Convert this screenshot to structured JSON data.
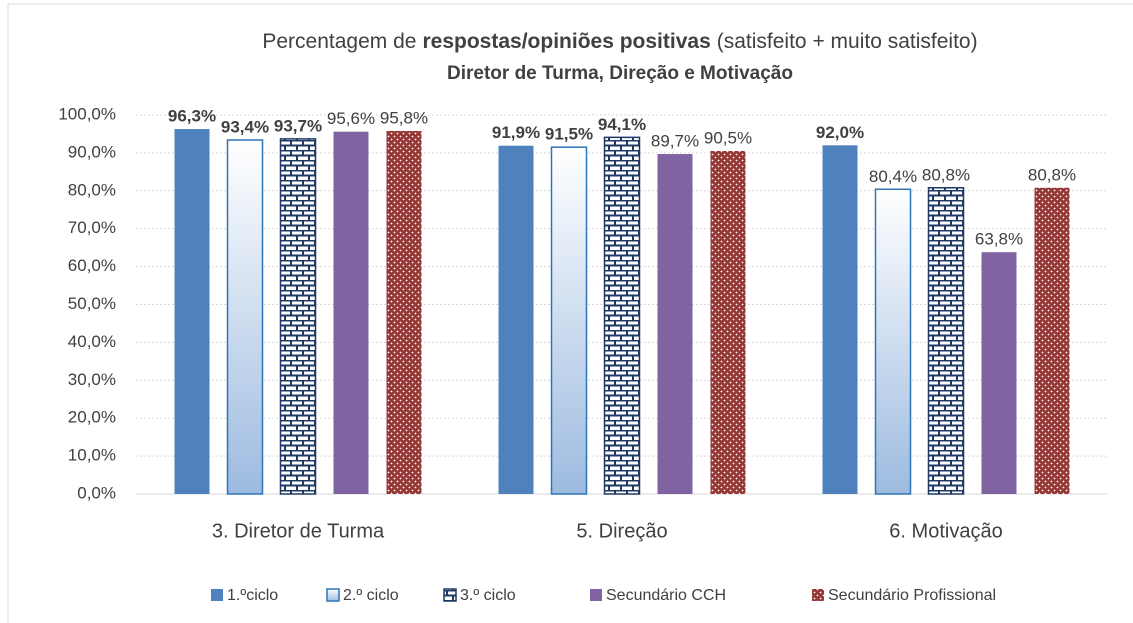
{
  "chart_data": {
    "type": "bar",
    "title": [
      "Percentagem de",
      "respostas/opiniões positivas",
      "(satisfeito + muito satisfeito)"
    ],
    "subtitle": "Diretor de Turma, Direção e Motivação",
    "categories": [
      "3. Diretor de Turma",
      "5. Direção",
      "6. Motivação"
    ],
    "series": [
      {
        "name": "1.ºciclo",
        "color": "#4f81bd",
        "pattern": "solid",
        "values": [
          96.3,
          91.9,
          92.0
        ],
        "value_labels": [
          "96,3%",
          "91,9%",
          "92,0%"
        ],
        "bold_labels": [
          true,
          true,
          true
        ]
      },
      {
        "name": "2.º ciclo",
        "color": "#2e75b6",
        "pattern": "gradient",
        "values": [
          93.4,
          91.5,
          80.4
        ],
        "value_labels": [
          "93,4%",
          "91,5%",
          "80,4%"
        ],
        "bold_labels": [
          true,
          true,
          false
        ]
      },
      {
        "name": "3.º ciclo",
        "color": "#1f3864",
        "pattern": "brick",
        "values": [
          93.7,
          94.1,
          80.8
        ],
        "value_labels": [
          "93,7%",
          "94,1%",
          "80,8%"
        ],
        "bold_labels": [
          true,
          true,
          false
        ]
      },
      {
        "name": "Secundário CCH",
        "color": "#8064a2",
        "pattern": "solid",
        "values": [
          95.6,
          89.7,
          63.8
        ],
        "value_labels": [
          "95,6%",
          "89,7%",
          "63,8%"
        ],
        "bold_labels": [
          false,
          false,
          false
        ]
      },
      {
        "name": "Secundário Profissional",
        "color": "#953735",
        "pattern": "dots",
        "values": [
          95.8,
          90.5,
          80.8
        ],
        "value_labels": [
          "95,8%",
          "90,5%",
          "80,8%"
        ],
        "bold_labels": [
          false,
          false,
          false
        ]
      }
    ],
    "ylim": [
      0,
      100
    ],
    "yticks": [
      {
        "value": 0,
        "label": "0,0%"
      },
      {
        "value": 10,
        "label": "10,0%"
      },
      {
        "value": 20,
        "label": "20,0%"
      },
      {
        "value": 30,
        "label": "30,0%"
      },
      {
        "value": 40,
        "label": "40,0%"
      },
      {
        "value": 50,
        "label": "50,0%"
      },
      {
        "value": 60,
        "label": "60,0%"
      },
      {
        "value": 70,
        "label": "70,0%"
      },
      {
        "value": 80,
        "label": "80,0%"
      },
      {
        "value": 90,
        "label": "90,0%"
      },
      {
        "value": 100,
        "label": "100,0%"
      }
    ],
    "grid": true,
    "legend": "bottom"
  }
}
